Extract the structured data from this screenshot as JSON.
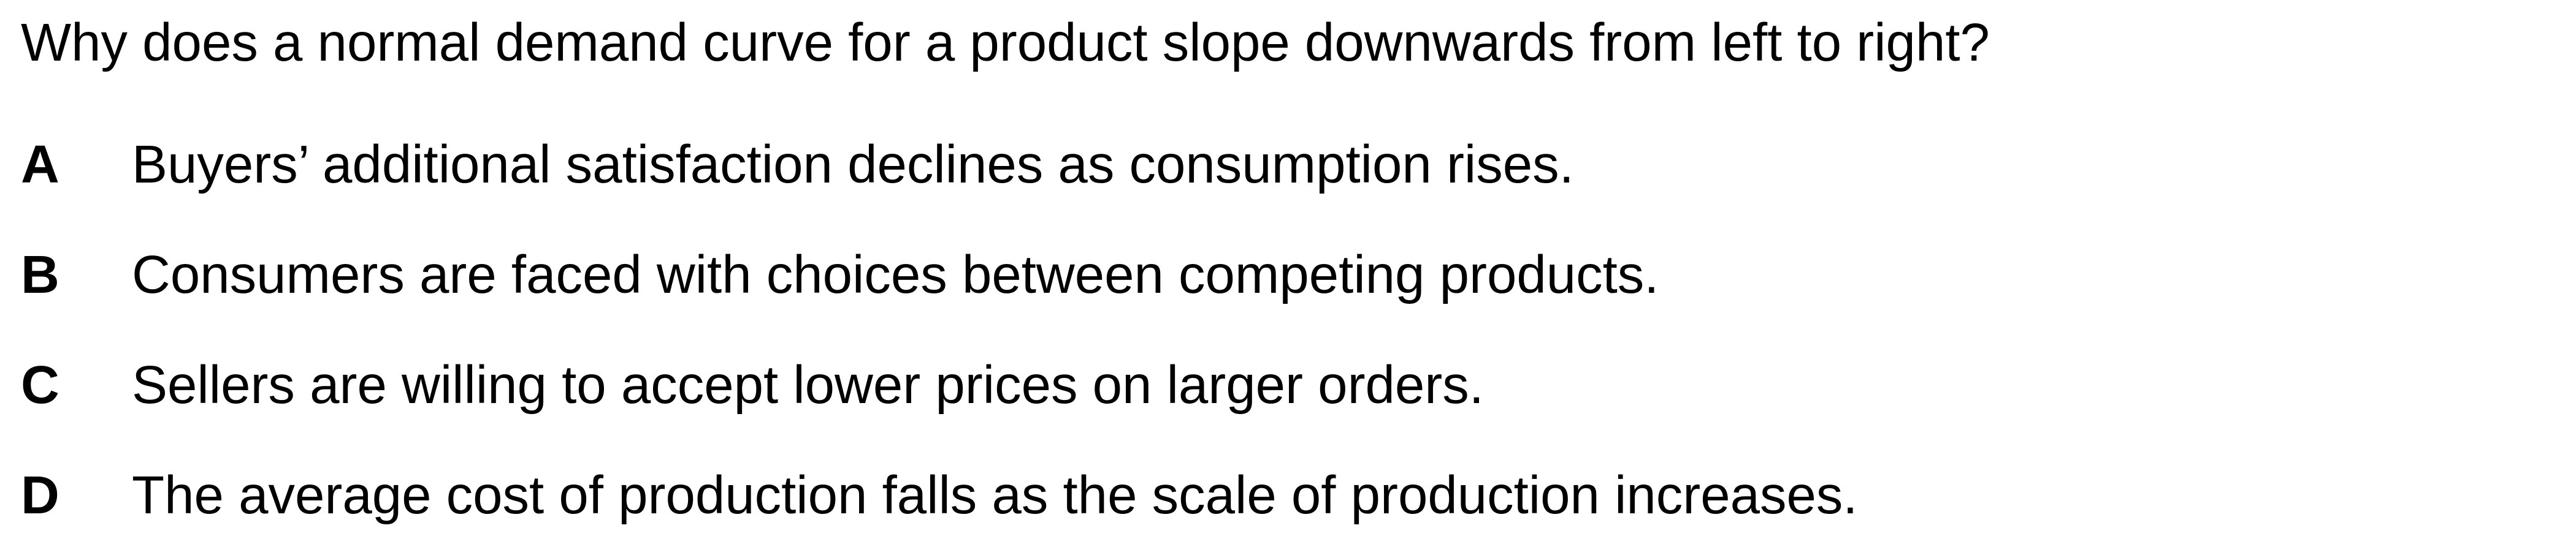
{
  "question": "Why does a normal demand curve for a product slope downwards from left to right?",
  "options": [
    {
      "letter": "A",
      "text": "Buyers’ additional satisfaction declines as consumption rises."
    },
    {
      "letter": "B",
      "text": "Consumers are faced with choices between competing products."
    },
    {
      "letter": "C",
      "text": "Sellers are willing to accept lower prices on larger orders."
    },
    {
      "letter": "D",
      "text": "The average cost of production falls as the scale of production increases."
    }
  ]
}
